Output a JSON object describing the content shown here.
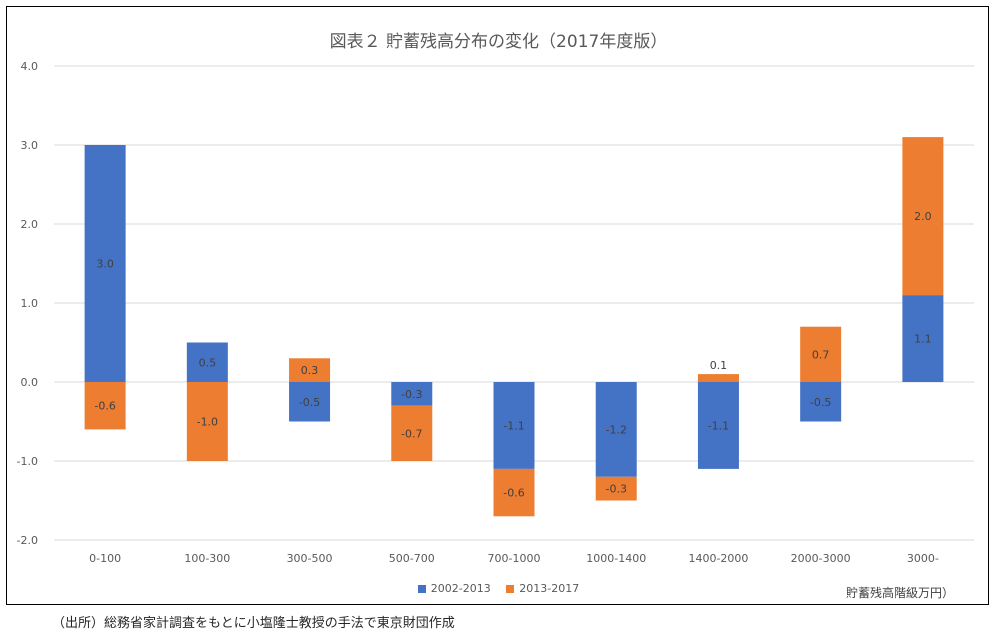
{
  "chart_data": {
    "type": "bar",
    "stacked": true,
    "title": "図表２ 貯蓄残高分布の変化（2017年度版）",
    "xlabel": "貯蓄残高階級万円）",
    "categories": [
      "0-100",
      "100-300",
      "300-500",
      "500-700",
      "700-1000",
      "1000-1400",
      "1400-2000",
      "2000-3000",
      "3000-"
    ],
    "series": [
      {
        "name": "2002-2013",
        "color": "#4472C4",
        "values": [
          3.0,
          0.5,
          -0.5,
          -0.3,
          -1.1,
          -1.2,
          -1.1,
          -0.5,
          1.1
        ],
        "labels": [
          "3.0",
          "0.5",
          "-0.5",
          "-0.3",
          "-1.1",
          "-1.2",
          "-1.1",
          "-0.5",
          "1.1"
        ]
      },
      {
        "name": "2013-2017",
        "color": "#ED7D31",
        "values": [
          -0.6,
          -1.0,
          0.3,
          -0.7,
          -0.6,
          -0.3,
          0.1,
          0.7,
          2.0
        ],
        "labels": [
          "-0.6",
          "-1.0",
          "0.3",
          "-0.7",
          "-0.6",
          "-0.3",
          "0.1",
          "0.7",
          "2.0"
        ]
      }
    ],
    "ylim": [
      -2.0,
      4.0
    ],
    "yticks": [
      "4.0",
      "3.0",
      "2.0",
      "1.0",
      "0.0",
      "-1.0",
      "-2.0"
    ],
    "grid": true,
    "legend_position": "bottom"
  },
  "source_note": "（出所）総務省家計調査をもとに小塩隆士教授の手法で東京財団作成"
}
